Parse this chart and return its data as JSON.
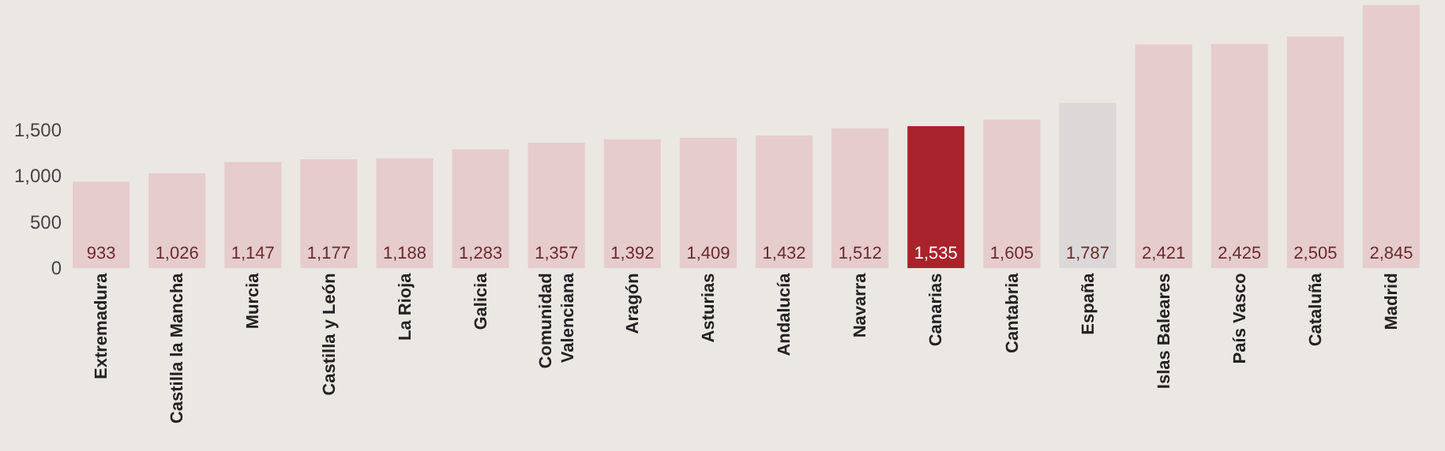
{
  "chart_data": {
    "type": "bar",
    "categories": [
      "Extremadura",
      "Castilla la Mancha",
      "Murcia",
      "Castilla y León",
      "La Rioja",
      "Galicia",
      "Comunidad Valenciana",
      "Aragón",
      "Asturias",
      "Andalucía",
      "Navarra",
      "Canarias",
      "Cantabria",
      "España",
      "Islas Baleares",
      "País Vasco",
      "Cataluña",
      "Madrid"
    ],
    "values": [
      933,
      1026,
      1147,
      1177,
      1188,
      1283,
      1357,
      1392,
      1409,
      1432,
      1512,
      1535,
      1605,
      1787,
      2421,
      2425,
      2505,
      2845
    ],
    "colors": [
      "#e6cccd",
      "#e6cccd",
      "#e6cccd",
      "#e6cccd",
      "#e6cccd",
      "#e6cccd",
      "#e6cccd",
      "#e6cccd",
      "#e6cccd",
      "#e6cccd",
      "#e6cccd",
      "#a8232b",
      "#e6cccd",
      "#dcd8d8",
      "#e6cccd",
      "#e6cccd",
      "#e6cccd",
      "#e6cccd"
    ],
    "value_labels": [
      "933",
      "1,026",
      "1,147",
      "1,177",
      "1,188",
      "1,283",
      "1,357",
      "1,392",
      "1,409",
      "1,432",
      "1,512",
      "1,535",
      "1,605",
      "1,787",
      "2,421",
      "2,425",
      "2,505",
      "2,845"
    ],
    "ylim": [
      0,
      2900
    ],
    "yticks": [
      {
        "value": 0,
        "label": "0"
      },
      {
        "value": 500,
        "label": "500"
      },
      {
        "value": 1000,
        "label": "1,000"
      },
      {
        "value": 1500,
        "label": "1,500"
      }
    ],
    "grid": false
  }
}
